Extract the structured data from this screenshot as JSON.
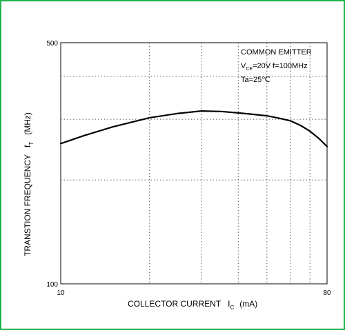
{
  "theme": {
    "frame_color": "#22b14c",
    "line_color": "#000000"
  },
  "chart_data": {
    "type": "line",
    "title": "",
    "xlabel": "COLLECTOR CURRENT",
    "xlabel_symbol": "I",
    "xlabel_subscript": "C",
    "xlabel_unit": "(mA)",
    "ylabel": "TRANSTION FREQUENCY",
    "ylabel_symbol": "f",
    "ylabel_subscript": "T",
    "ylabel_unit": "(MHz)",
    "x_scale": "log",
    "y_scale": "log",
    "xlim": [
      10,
      80
    ],
    "ylim": [
      100,
      500
    ],
    "x_tick_labels": [
      "10",
      "80"
    ],
    "y_tick_labels": [
      "100",
      "500"
    ],
    "x_gridlines": [
      20,
      30,
      40,
      50,
      60,
      70
    ],
    "y_gridlines": [
      200,
      300,
      400
    ],
    "grid": "dotted",
    "annotations": {
      "line1": "COMMON EMITTER",
      "v_symbol": "V",
      "v_subscript": "CE",
      "v_rest": "=20V   f=100MHz",
      "line3": "Ta=25℃"
    },
    "series": [
      {
        "x": [
          10,
          12,
          15,
          20,
          25,
          30,
          35,
          40,
          45,
          50,
          55,
          60,
          65,
          70,
          75,
          80
        ],
        "y": [
          255,
          269,
          285,
          303,
          312,
          317,
          316,
          313,
          310,
          307,
          302,
          297,
          288,
          277,
          264,
          250
        ]
      }
    ]
  }
}
